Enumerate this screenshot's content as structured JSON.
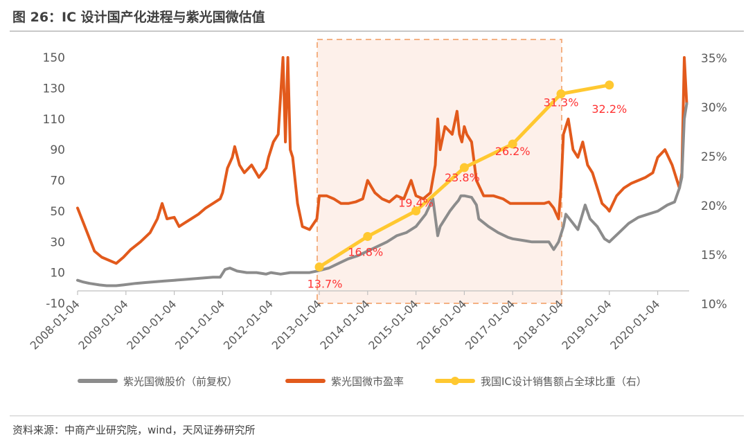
{
  "title": "图 26：IC 设计国产化进程与紫光国微估值",
  "source": "资料来源：中商产业研究院，wind，天风证券研究所",
  "colors": {
    "price": "#8c8c8c",
    "pe": "#e25a1c",
    "ratio": "#ffc830",
    "highlight_fill": "#fdf0ea",
    "highlight_border": "#f4b183",
    "label_red": "#ff3333",
    "axis_text": "#595959"
  },
  "chart_data": {
    "type": "line",
    "x_tick_labels": [
      "2008-01-04",
      "2009-01-04",
      "2010-01-04",
      "2011-01-04",
      "2012-01-04",
      "2013-01-04",
      "2014-01-04",
      "2015-01-04",
      "2016-01-04",
      "2017-01-04",
      "2018-01-04",
      "2019-01-04",
      "2020-01-04"
    ],
    "x_range": [
      2008.0,
      2020.65
    ],
    "y_left": {
      "range": [
        -10,
        150
      ],
      "ticks": [
        "-10",
        "10",
        "30",
        "50",
        "70",
        "90",
        "110",
        "130",
        "150"
      ]
    },
    "y_right": {
      "range": [
        10,
        35
      ],
      "unit": "%",
      "ticks": [
        "10%",
        "15%",
        "20%",
        "25%",
        "30%",
        "35%"
      ]
    },
    "highlight_region": {
      "x_start": 2013.0,
      "x_end": 2018.0
    },
    "legend_position": "bottom",
    "series": [
      {
        "name": "紫光国微股价（前复权）",
        "axis": "left",
        "x": [
          2008.0,
          2008.1,
          2008.25,
          2008.45,
          2008.6,
          2008.8,
          2008.95,
          2009.2,
          2009.4,
          2009.6,
          2009.8,
          2010.0,
          2010.2,
          2010.4,
          2010.6,
          2010.8,
          2010.95,
          2011.05,
          2011.15,
          2011.3,
          2011.5,
          2011.7,
          2011.9,
          2012.0,
          2012.2,
          2012.4,
          2012.6,
          2012.8,
          2012.95,
          2013.2,
          2013.4,
          2013.6,
          2013.8,
          2014.0,
          2014.2,
          2014.4,
          2014.6,
          2014.8,
          2015.0,
          2015.2,
          2015.35,
          2015.45,
          2015.5,
          2015.6,
          2015.7,
          2015.8,
          2015.88,
          2015.93,
          2016.0,
          2016.15,
          2016.25,
          2016.3,
          2016.5,
          2016.7,
          2016.9,
          2017.0,
          2017.2,
          2017.4,
          2017.6,
          2017.75,
          2017.85,
          2017.95,
          2018.05,
          2018.1,
          2018.2,
          2018.35,
          2018.5,
          2018.6,
          2018.75,
          2018.9,
          2019.0,
          2019.2,
          2019.4,
          2019.6,
          2019.8,
          2020.0,
          2020.2,
          2020.35,
          2020.45,
          2020.5,
          2020.55,
          2020.6
        ],
        "values": [
          5,
          4,
          3,
          2,
          1.5,
          1.5,
          2,
          3,
          3.5,
          4,
          4.5,
          5,
          5.5,
          6,
          6.5,
          7,
          7,
          12,
          13,
          11,
          10,
          10,
          9,
          10,
          9,
          10,
          10,
          10,
          11,
          13,
          16,
          19,
          21,
          24,
          27,
          30,
          34,
          36,
          40,
          48,
          58,
          34,
          40,
          45,
          50,
          54,
          57,
          60,
          60,
          59,
          54,
          45,
          40,
          36,
          33,
          32,
          31,
          30,
          30,
          30,
          25,
          30,
          40,
          48,
          44,
          38,
          54,
          45,
          40,
          32,
          30,
          36,
          42,
          46,
          48,
          50,
          54,
          56,
          65,
          72,
          110,
          120
        ]
      },
      {
        "name": "紫光国微市盈率",
        "axis": "left",
        "x": [
          2008.0,
          2008.05,
          2008.15,
          2008.25,
          2008.35,
          2008.5,
          2008.65,
          2008.8,
          2008.95,
          2009.1,
          2009.3,
          2009.5,
          2009.65,
          2009.75,
          2009.85,
          2010.0,
          2010.1,
          2010.2,
          2010.35,
          2010.5,
          2010.65,
          2010.8,
          2010.95,
          2011.0,
          2011.05,
          2011.1,
          2011.2,
          2011.25,
          2011.35,
          2011.45,
          2011.6,
          2011.75,
          2011.9,
          2011.95,
          2012.0,
          2012.05,
          2012.15,
          2012.25,
          2012.3,
          2012.35,
          2012.4,
          2012.45,
          2012.55,
          2012.65,
          2012.8,
          2012.95,
          2013.0,
          2013.15,
          2013.3,
          2013.45,
          2013.6,
          2013.75,
          2013.9,
          2014.0,
          2014.15,
          2014.3,
          2014.45,
          2014.6,
          2014.75,
          2014.9,
          2015.0,
          2015.15,
          2015.3,
          2015.4,
          2015.45,
          2015.5,
          2015.6,
          2015.75,
          2015.85,
          2015.9,
          2015.95,
          2016.0,
          2016.05,
          2016.15,
          2016.25,
          2016.4,
          2016.6,
          2016.8,
          2016.95,
          2017.1,
          2017.3,
          2017.5,
          2017.65,
          2017.75,
          2017.85,
          2017.95,
          2018.0,
          2018.05,
          2018.15,
          2018.25,
          2018.35,
          2018.45,
          2018.55,
          2018.65,
          2018.75,
          2018.85,
          2018.95,
          2019.0,
          2019.15,
          2019.3,
          2019.45,
          2019.6,
          2019.75,
          2019.9,
          2020.0,
          2020.15,
          2020.3,
          2020.4,
          2020.45,
          2020.5,
          2020.55,
          2020.6
        ],
        "values": [
          52,
          48,
          40,
          32,
          24,
          20,
          18,
          16,
          20,
          25,
          30,
          36,
          45,
          55,
          45,
          46,
          40,
          42,
          45,
          48,
          52,
          55,
          58,
          62,
          70,
          78,
          85,
          92,
          80,
          75,
          80,
          72,
          78,
          85,
          90,
          95,
          100,
          150,
          95,
          150,
          90,
          85,
          55,
          40,
          38,
          45,
          60,
          60,
          58,
          55,
          55,
          56,
          58,
          70,
          62,
          58,
          56,
          60,
          58,
          70,
          60,
          58,
          62,
          80,
          110,
          90,
          105,
          100,
          115,
          100,
          95,
          105,
          100,
          95,
          70,
          60,
          60,
          58,
          55,
          55,
          55,
          55,
          55,
          56,
          52,
          45,
          65,
          100,
          110,
          90,
          85,
          95,
          80,
          75,
          65,
          55,
          52,
          50,
          60,
          65,
          68,
          70,
          72,
          75,
          85,
          90,
          80,
          70,
          65,
          75,
          150,
          120
        ]
      },
      {
        "name": "我国IC设计销售额占全球比重（右）",
        "axis": "right",
        "x": [
          2013.0,
          2014.0,
          2015.0,
          2016.0,
          2017.0,
          2018.0,
          2019.0
        ],
        "values": [
          13.7,
          16.8,
          19.4,
          23.8,
          26.2,
          31.3,
          32.2
        ],
        "data_labels": [
          "13.7%",
          "16.8%",
          "19.4%",
          "23.8%",
          "26.2%",
          "31.3%",
          "32.2%"
        ]
      }
    ]
  }
}
